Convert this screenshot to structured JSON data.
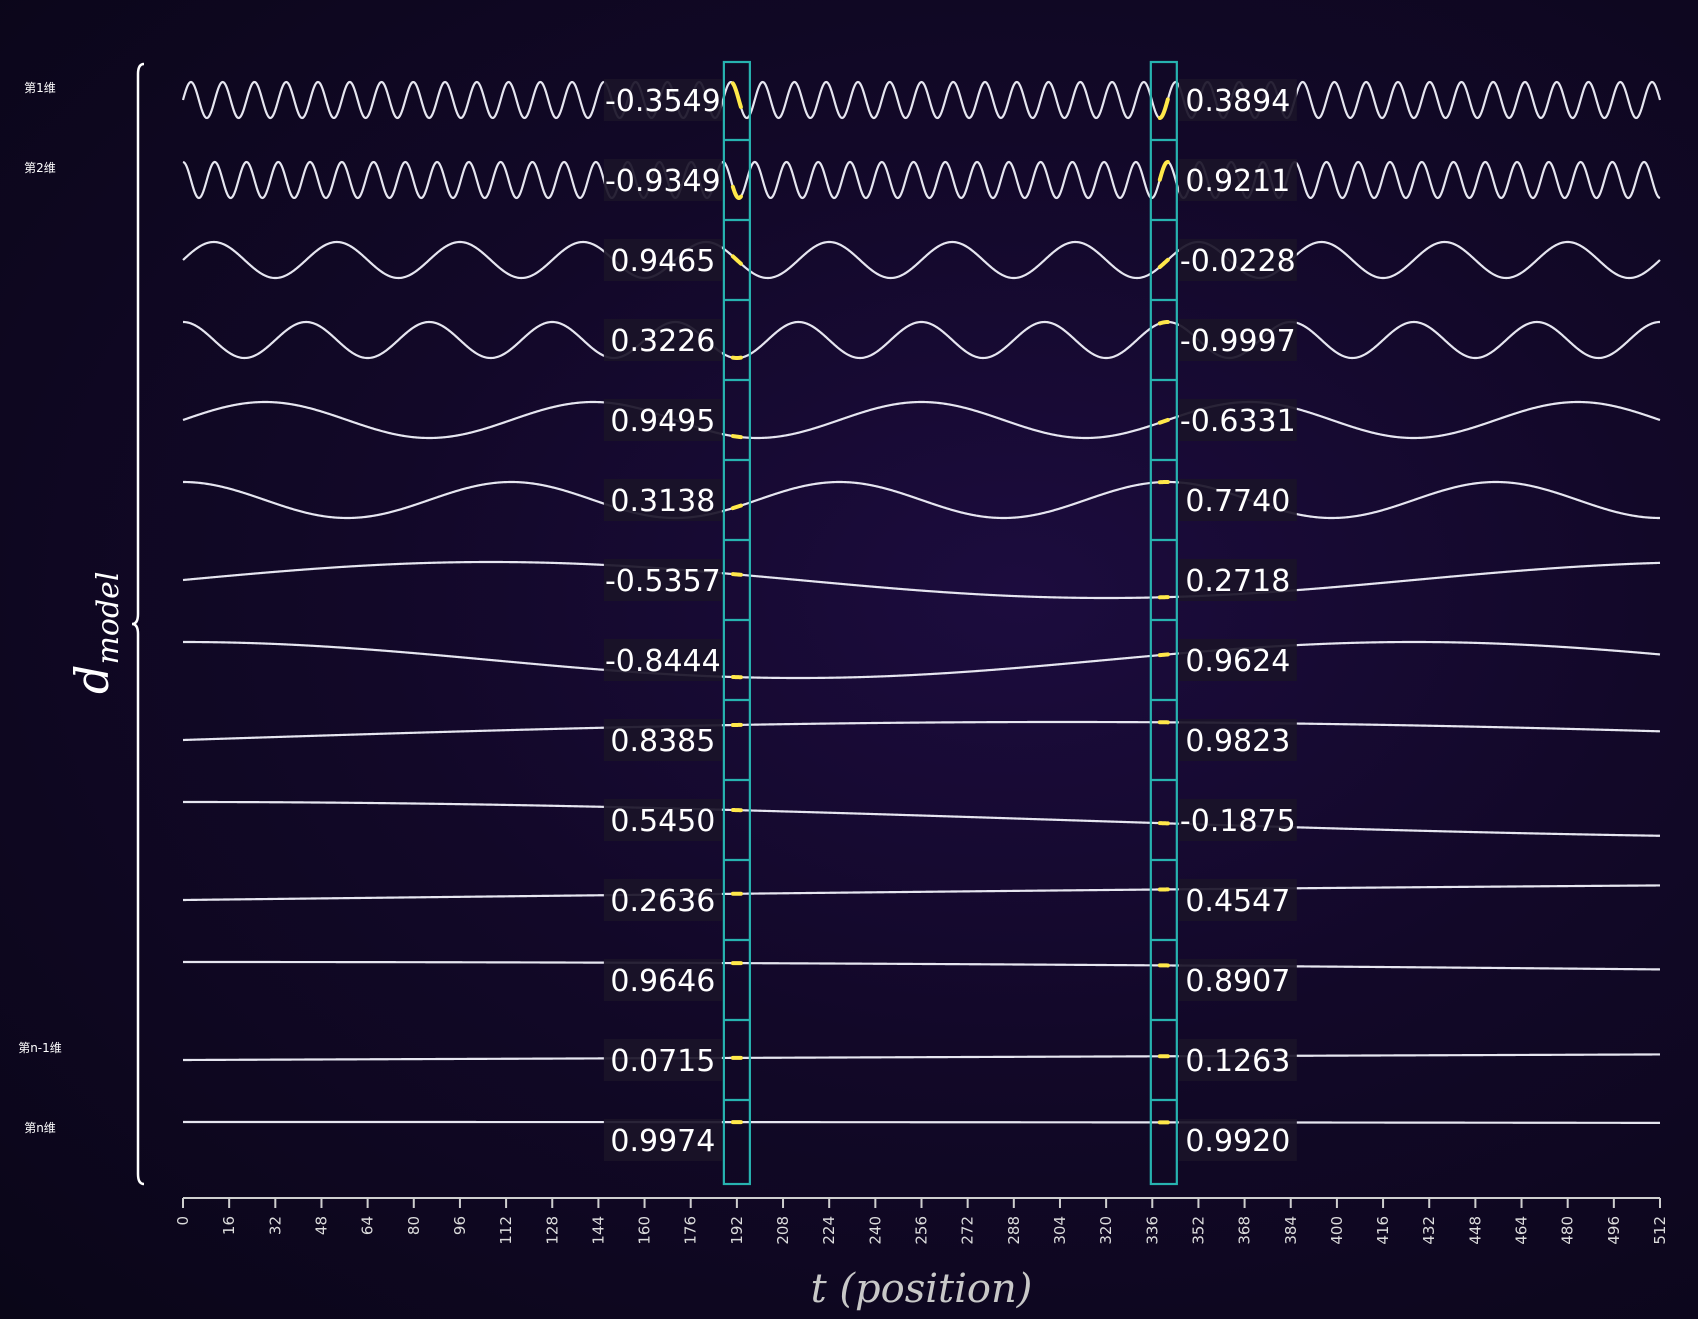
{
  "colors": {
    "curve": "#e6e6f0",
    "highlight_box": "#27b3b0",
    "highlight_curve": "#ffe84a",
    "value_bg": "#1a1328"
  },
  "dimension_labels": [
    {
      "row": 0,
      "text": "第1维"
    },
    {
      "row": 1,
      "text": "第2维"
    },
    {
      "row": 12,
      "text": "第n-1维"
    },
    {
      "row": 13,
      "text": "第n维"
    }
  ],
  "brace_label": {
    "main": "d",
    "sub": "model"
  },
  "chart_data": {
    "type": "line",
    "xlabel": "t (position)",
    "xlim": [
      0,
      512
    ],
    "x_ticks": [
      "0",
      "16",
      "32",
      "48",
      "64",
      "80",
      "96",
      "112",
      "128",
      "144",
      "160",
      "176",
      "192",
      "208",
      "224",
      "240",
      "256",
      "272",
      "288",
      "304",
      "320",
      "336",
      "352",
      "368",
      "384",
      "400",
      "416",
      "432",
      "448",
      "464",
      "480",
      "496",
      "512"
    ],
    "highlight_positions": [
      192,
      340
    ],
    "series": [
      {
        "freq": 46.5,
        "phase": 0.0,
        "values_at_highlights": [
          "-0.3549",
          "0.3894"
        ]
      },
      {
        "freq": 46.5,
        "phase": 1.5708,
        "values_at_highlights": [
          "-0.9349",
          "0.9211"
        ]
      },
      {
        "freq": 12.0,
        "phase": 0.0,
        "values_at_highlights": [
          "0.9465",
          "-0.0228"
        ]
      },
      {
        "freq": 12.0,
        "phase": 1.5708,
        "values_at_highlights": [
          "0.3226",
          "-0.9997"
        ]
      },
      {
        "freq": 4.5,
        "phase": 0.0,
        "values_at_highlights": [
          "0.9495",
          "-0.6331"
        ]
      },
      {
        "freq": 4.5,
        "phase": 1.5708,
        "values_at_highlights": [
          "0.3138",
          "0.7740"
        ]
      },
      {
        "freq": 1.2,
        "phase": 0.0,
        "values_at_highlights": [
          "-0.5357",
          "0.2718"
        ]
      },
      {
        "freq": 1.2,
        "phase": 1.5708,
        "values_at_highlights": [
          "-0.8444",
          "0.9624"
        ]
      },
      {
        "freq": 0.42,
        "phase": 0.0,
        "values_at_highlights": [
          "0.8385",
          "0.9823"
        ]
      },
      {
        "freq": 0.42,
        "phase": 1.5708,
        "values_at_highlights": [
          "0.5450",
          "-0.1875"
        ]
      },
      {
        "freq": 0.15,
        "phase": 0.0,
        "values_at_highlights": [
          "0.2636",
          "0.4547"
        ]
      },
      {
        "freq": 0.15,
        "phase": 1.5708,
        "values_at_highlights": [
          "0.9646",
          "0.8907"
        ]
      },
      {
        "freq": 0.05,
        "phase": 0.0,
        "values_at_highlights": [
          "0.0715",
          "0.1263"
        ]
      },
      {
        "freq": 0.05,
        "phase": 1.5708,
        "values_at_highlights": [
          "0.9974",
          "0.9920"
        ]
      }
    ]
  }
}
